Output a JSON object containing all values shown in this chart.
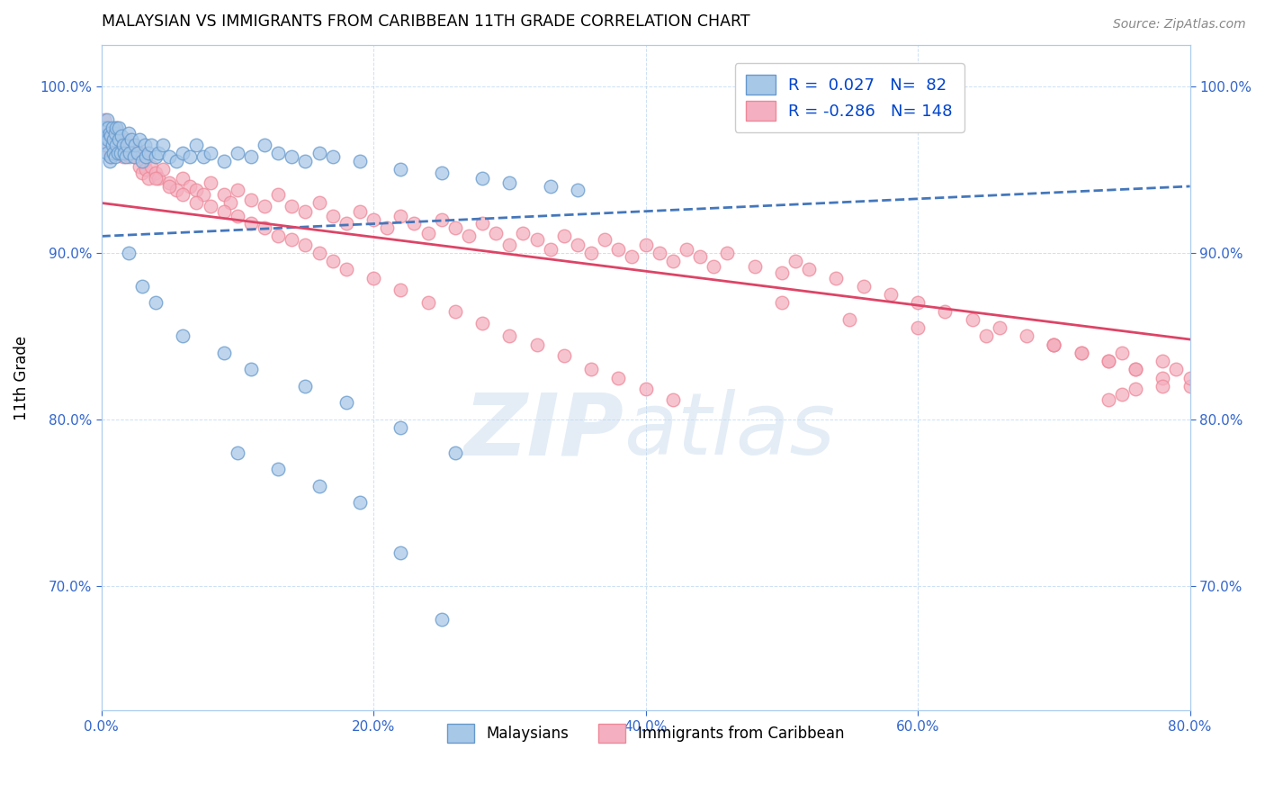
{
  "title": "MALAYSIAN VS IMMIGRANTS FROM CARIBBEAN 11TH GRADE CORRELATION CHART",
  "source": "Source: ZipAtlas.com",
  "ylabel": "11th Grade",
  "xmin": 0.0,
  "xmax": 0.8,
  "ymin": 0.625,
  "ymax": 1.025,
  "xtick_labels": [
    "0.0%",
    "20.0%",
    "40.0%",
    "60.0%",
    "80.0%"
  ],
  "xtick_vals": [
    0.0,
    0.2,
    0.4,
    0.6,
    0.8
  ],
  "ytick_labels": [
    "70.0%",
    "80.0%",
    "90.0%",
    "100.0%"
  ],
  "ytick_vals": [
    0.7,
    0.8,
    0.9,
    1.0
  ],
  "malaysian_color": "#a8c8e8",
  "caribbean_color": "#f4b0c0",
  "malaysian_edge": "#6699cc",
  "caribbean_edge": "#ee8899",
  "trendline_blue": "#4477bb",
  "trendline_pink": "#dd4466",
  "R_malaysian": 0.027,
  "N_malaysian": 82,
  "R_caribbean": -0.286,
  "N_caribbean": 148,
  "legend_text_color": "#0044cc",
  "blue_trend_x0": 0.0,
  "blue_trend_y0": 0.91,
  "blue_trend_x1": 0.8,
  "blue_trend_y1": 0.94,
  "pink_trend_x0": 0.0,
  "pink_trend_y0": 0.93,
  "pink_trend_x1": 0.8,
  "pink_trend_y1": 0.848,
  "malaysian_x": [
    0.002,
    0.003,
    0.003,
    0.004,
    0.004,
    0.005,
    0.005,
    0.006,
    0.006,
    0.007,
    0.007,
    0.008,
    0.008,
    0.009,
    0.009,
    0.01,
    0.01,
    0.011,
    0.011,
    0.012,
    0.013,
    0.013,
    0.014,
    0.015,
    0.016,
    0.017,
    0.018,
    0.019,
    0.02,
    0.021,
    0.022,
    0.024,
    0.025,
    0.027,
    0.028,
    0.03,
    0.032,
    0.033,
    0.035,
    0.037,
    0.04,
    0.042,
    0.045,
    0.05,
    0.055,
    0.06,
    0.065,
    0.07,
    0.075,
    0.08,
    0.09,
    0.1,
    0.11,
    0.12,
    0.13,
    0.14,
    0.15,
    0.16,
    0.17,
    0.19,
    0.22,
    0.25,
    0.28,
    0.3,
    0.33,
    0.35,
    0.02,
    0.03,
    0.04,
    0.06,
    0.09,
    0.11,
    0.15,
    0.18,
    0.22,
    0.26,
    0.1,
    0.13,
    0.16,
    0.19,
    0.22,
    0.25
  ],
  "malaysian_y": [
    0.975,
    0.97,
    0.965,
    0.98,
    0.96,
    0.975,
    0.968,
    0.972,
    0.955,
    0.97,
    0.958,
    0.965,
    0.975,
    0.96,
    0.968,
    0.972,
    0.958,
    0.965,
    0.975,
    0.96,
    0.968,
    0.975,
    0.96,
    0.97,
    0.965,
    0.96,
    0.958,
    0.965,
    0.972,
    0.96,
    0.968,
    0.958,
    0.965,
    0.96,
    0.968,
    0.955,
    0.965,
    0.958,
    0.96,
    0.965,
    0.958,
    0.96,
    0.965,
    0.958,
    0.955,
    0.96,
    0.958,
    0.965,
    0.958,
    0.96,
    0.955,
    0.96,
    0.958,
    0.965,
    0.96,
    0.958,
    0.955,
    0.96,
    0.958,
    0.955,
    0.95,
    0.948,
    0.945,
    0.942,
    0.94,
    0.938,
    0.9,
    0.88,
    0.87,
    0.85,
    0.84,
    0.83,
    0.82,
    0.81,
    0.795,
    0.78,
    0.78,
    0.77,
    0.76,
    0.75,
    0.72,
    0.68
  ],
  "caribbean_x": [
    0.002,
    0.003,
    0.003,
    0.004,
    0.004,
    0.005,
    0.005,
    0.006,
    0.006,
    0.007,
    0.007,
    0.008,
    0.008,
    0.009,
    0.009,
    0.01,
    0.01,
    0.011,
    0.011,
    0.012,
    0.012,
    0.013,
    0.014,
    0.015,
    0.016,
    0.017,
    0.018,
    0.019,
    0.02,
    0.021,
    0.022,
    0.024,
    0.025,
    0.027,
    0.028,
    0.03,
    0.032,
    0.033,
    0.035,
    0.037,
    0.04,
    0.042,
    0.045,
    0.05,
    0.055,
    0.06,
    0.065,
    0.07,
    0.075,
    0.08,
    0.09,
    0.095,
    0.1,
    0.11,
    0.12,
    0.13,
    0.14,
    0.15,
    0.16,
    0.17,
    0.18,
    0.19,
    0.2,
    0.21,
    0.22,
    0.23,
    0.24,
    0.25,
    0.26,
    0.27,
    0.28,
    0.29,
    0.3,
    0.31,
    0.32,
    0.33,
    0.34,
    0.35,
    0.36,
    0.37,
    0.38,
    0.39,
    0.4,
    0.41,
    0.42,
    0.43,
    0.44,
    0.45,
    0.46,
    0.48,
    0.5,
    0.51,
    0.52,
    0.54,
    0.56,
    0.58,
    0.6,
    0.62,
    0.64,
    0.66,
    0.68,
    0.7,
    0.72,
    0.74,
    0.76,
    0.78,
    0.8,
    0.03,
    0.04,
    0.05,
    0.06,
    0.07,
    0.08,
    0.09,
    0.1,
    0.11,
    0.12,
    0.13,
    0.14,
    0.15,
    0.16,
    0.17,
    0.18,
    0.2,
    0.22,
    0.24,
    0.26,
    0.28,
    0.3,
    0.32,
    0.34,
    0.36,
    0.38,
    0.4,
    0.42,
    0.5,
    0.55,
    0.6,
    0.65,
    0.7,
    0.75,
    0.78,
    0.79,
    0.8,
    0.76,
    0.74,
    0.72,
    0.7,
    0.78,
    0.76,
    0.75,
    0.74
  ],
  "caribbean_y": [
    0.98,
    0.975,
    0.97,
    0.975,
    0.968,
    0.972,
    0.965,
    0.97,
    0.96,
    0.968,
    0.958,
    0.965,
    0.972,
    0.96,
    0.968,
    0.972,
    0.96,
    0.968,
    0.975,
    0.96,
    0.968,
    0.965,
    0.96,
    0.968,
    0.958,
    0.965,
    0.96,
    0.968,
    0.96,
    0.958,
    0.965,
    0.96,
    0.958,
    0.96,
    0.952,
    0.948,
    0.955,
    0.95,
    0.945,
    0.952,
    0.948,
    0.945,
    0.95,
    0.942,
    0.938,
    0.945,
    0.94,
    0.938,
    0.935,
    0.942,
    0.935,
    0.93,
    0.938,
    0.932,
    0.928,
    0.935,
    0.928,
    0.925,
    0.93,
    0.922,
    0.918,
    0.925,
    0.92,
    0.915,
    0.922,
    0.918,
    0.912,
    0.92,
    0.915,
    0.91,
    0.918,
    0.912,
    0.905,
    0.912,
    0.908,
    0.902,
    0.91,
    0.905,
    0.9,
    0.908,
    0.902,
    0.898,
    0.905,
    0.9,
    0.895,
    0.902,
    0.898,
    0.892,
    0.9,
    0.892,
    0.888,
    0.895,
    0.89,
    0.885,
    0.88,
    0.875,
    0.87,
    0.865,
    0.86,
    0.855,
    0.85,
    0.845,
    0.84,
    0.835,
    0.83,
    0.825,
    0.82,
    0.96,
    0.945,
    0.94,
    0.935,
    0.93,
    0.928,
    0.925,
    0.922,
    0.918,
    0.915,
    0.91,
    0.908,
    0.905,
    0.9,
    0.895,
    0.89,
    0.885,
    0.878,
    0.87,
    0.865,
    0.858,
    0.85,
    0.845,
    0.838,
    0.83,
    0.825,
    0.818,
    0.812,
    0.87,
    0.86,
    0.855,
    0.85,
    0.845,
    0.84,
    0.835,
    0.83,
    0.825,
    0.83,
    0.835,
    0.84,
    0.845,
    0.82,
    0.818,
    0.815,
    0.812
  ]
}
